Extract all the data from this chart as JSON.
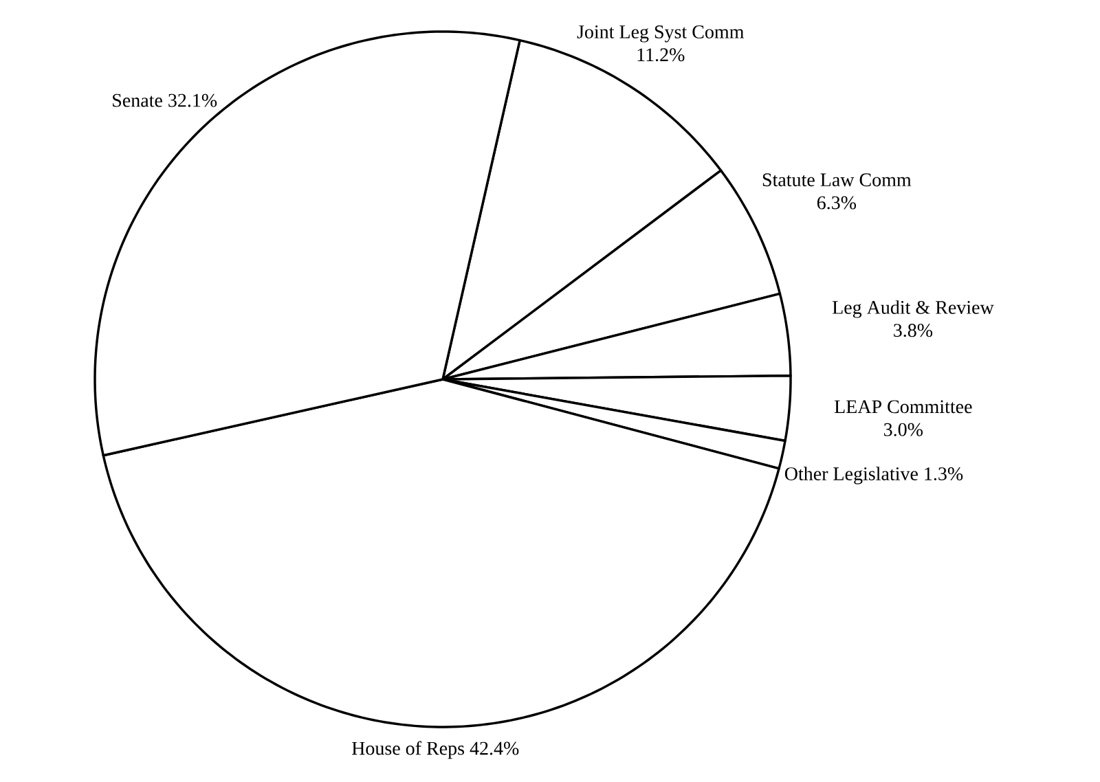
{
  "chart_data": {
    "type": "pie",
    "categories": [
      "Joint Leg Syst Comm",
      "Statute Law Comm",
      "Leg Audit & Review",
      "LEAP Committee",
      "Other Legislative",
      "House of Reps",
      "Senate"
    ],
    "values": [
      11.2,
      6.3,
      3.8,
      3.0,
      1.3,
      42.4,
      32.1
    ],
    "value_labels": [
      "11.2%",
      "6.3%",
      "3.8%",
      "3.0%",
      "1.3%",
      "42.4%",
      "32.1%"
    ],
    "colors": [
      "#ffffff",
      "#ffffff",
      "#ffffff",
      "#ffffff",
      "#ffffff",
      "#ffffff",
      "#ffffff"
    ]
  }
}
